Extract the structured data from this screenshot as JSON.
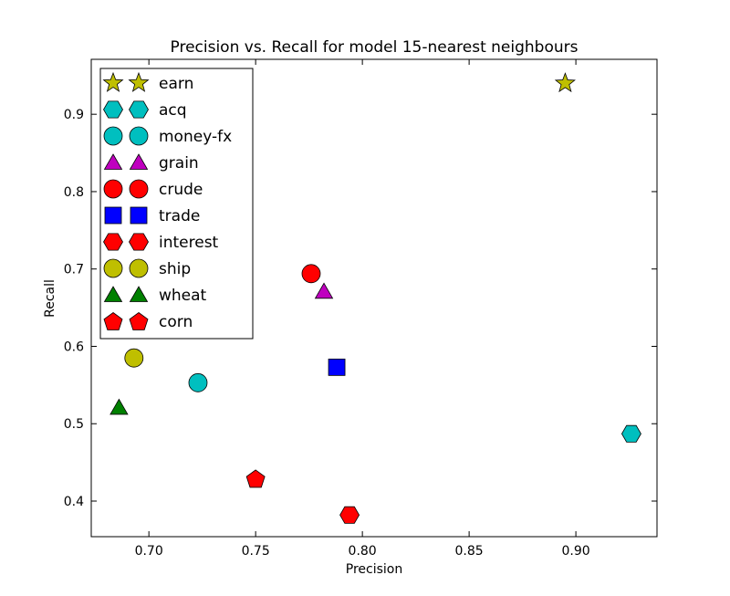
{
  "chart_data": {
    "type": "scatter",
    "title": "Precision vs. Recall for model 15-nearest neighbours",
    "xlabel": "Precision",
    "ylabel": "Recall",
    "xlim": [
      0.673,
      0.938
    ],
    "ylim": [
      0.354,
      0.971
    ],
    "x_ticks": [
      0.7,
      0.75,
      0.8,
      0.85,
      0.9
    ],
    "x_tick_labels": [
      "0.70",
      "0.75",
      "0.80",
      "0.85",
      "0.90"
    ],
    "y_ticks": [
      0.4,
      0.5,
      0.6,
      0.7,
      0.8,
      0.9
    ],
    "y_tick_labels": [
      "0.4",
      "0.5",
      "0.6",
      "0.7",
      "0.8",
      "0.9"
    ],
    "grid": false,
    "legend_position": "top-left",
    "series": [
      {
        "name": "earn",
        "marker": "star",
        "color": "#bfbf00",
        "x": 0.895,
        "y": 0.94
      },
      {
        "name": "acq",
        "marker": "hexagon",
        "color": "#00bfbf",
        "x": 0.926,
        "y": 0.487
      },
      {
        "name": "money-fx",
        "marker": "circle",
        "color": "#00bfbf",
        "x": 0.723,
        "y": 0.553
      },
      {
        "name": "grain",
        "marker": "triangle",
        "color": "#bf00bf",
        "x": 0.782,
        "y": 0.671
      },
      {
        "name": "crude",
        "marker": "circle",
        "color": "#ff0000",
        "x": 0.776,
        "y": 0.694
      },
      {
        "name": "trade",
        "marker": "square",
        "color": "#0000ff",
        "x": 0.788,
        "y": 0.573
      },
      {
        "name": "interest",
        "marker": "hexagon",
        "color": "#ff0000",
        "x": 0.794,
        "y": 0.382
      },
      {
        "name": "ship",
        "marker": "circle",
        "color": "#bfbf00",
        "x": 0.693,
        "y": 0.585
      },
      {
        "name": "wheat",
        "marker": "triangle",
        "color": "#008000",
        "x": 0.686,
        "y": 0.521
      },
      {
        "name": "corn",
        "marker": "pentagon",
        "color": "#ff0000",
        "x": 0.75,
        "y": 0.429
      }
    ]
  }
}
